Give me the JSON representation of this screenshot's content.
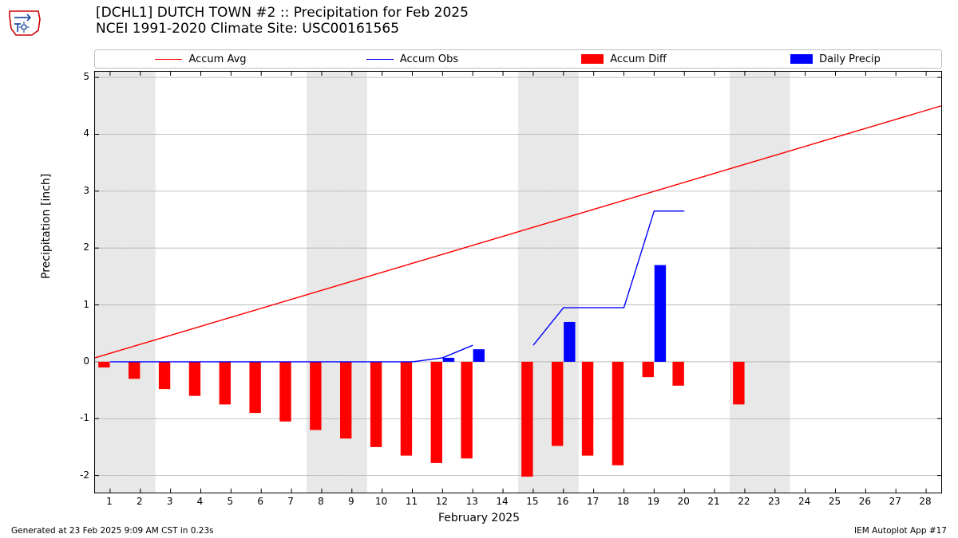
{
  "title_line1": "[DCHL1] DUTCH TOWN #2 :: Precipitation for Feb 2025",
  "title_line2": "NCEI 1991-2020 Climate Site: USC00161565",
  "ylabel": "Precipitation [inch]",
  "xlabel": "February 2025",
  "footer_left": "Generated at 23 Feb 2025 9:09 AM CST in 0.23s",
  "footer_right": "IEM Autoplot App #17",
  "legend": {
    "items": [
      {
        "kind": "line",
        "color": "#ff0000",
        "label": "Accum Avg"
      },
      {
        "kind": "line",
        "color": "#0000ff",
        "label": "Accum Obs"
      },
      {
        "kind": "patch",
        "color": "#ff0000",
        "label": "Accum Diff"
      },
      {
        "kind": "patch",
        "color": "#0000ff",
        "label": "Daily Precip"
      }
    ]
  },
  "chart": {
    "type": "mixed-bar-line",
    "background_color": "#ffffff",
    "grid_color": "#b0b0b0",
    "shade_color": "#e8e8e8",
    "axis_color": "#000000",
    "xlim": [
      0.5,
      28.5
    ],
    "ylim": [
      -2.3,
      5.1
    ],
    "yticks": [
      -2,
      -1,
      0,
      1,
      2,
      3,
      4,
      5
    ],
    "xticks": [
      1,
      2,
      3,
      4,
      5,
      6,
      7,
      8,
      9,
      10,
      11,
      12,
      13,
      14,
      15,
      16,
      17,
      18,
      19,
      20,
      21,
      22,
      23,
      24,
      25,
      26,
      27,
      28
    ],
    "weekend_days": [
      1,
      2,
      8,
      9,
      15,
      16,
      22,
      23
    ],
    "bar_width": 0.38,
    "bar_offset_red": -0.2,
    "bar_offset_blue": 0.2,
    "days": [
      1,
      2,
      3,
      4,
      5,
      6,
      7,
      8,
      9,
      10,
      11,
      12,
      13,
      14,
      15,
      16,
      17,
      18,
      19,
      20,
      21,
      22,
      23,
      24,
      25,
      26,
      27,
      28
    ],
    "accum_diff": {
      "color": "#ff0000",
      "values": [
        -0.1,
        -0.3,
        -0.48,
        -0.6,
        -0.75,
        -0.9,
        -1.05,
        -1.2,
        -1.35,
        -1.5,
        -1.65,
        -1.78,
        -1.7,
        null,
        -2.02,
        -1.48,
        -1.65,
        -1.82,
        -0.27,
        -0.42,
        null,
        -0.75,
        null,
        null,
        null,
        null,
        null,
        null
      ]
    },
    "daily_precip": {
      "color": "#0000ff",
      "values": [
        0,
        0,
        0,
        0,
        0,
        0,
        0,
        0,
        0,
        0,
        0,
        0.07,
        0.22,
        null,
        0,
        0.7,
        0,
        0,
        1.7,
        0,
        null,
        0,
        null,
        null,
        null,
        null,
        null,
        null
      ]
    },
    "accum_avg_line": {
      "color": "#ff0000",
      "width": 1.4,
      "points": [
        [
          0.5,
          0.07
        ],
        [
          28.5,
          4.5
        ]
      ]
    },
    "accum_obs_line": {
      "color": "#0000ff",
      "width": 1.4,
      "segments": [
        [
          [
            1,
            0.0
          ],
          [
            11,
            0.0
          ],
          [
            12,
            0.07
          ],
          [
            13,
            0.29
          ]
        ],
        [
          [
            15,
            0.29
          ],
          [
            16,
            0.95
          ],
          [
            18,
            0.95
          ],
          [
            19,
            2.65
          ],
          [
            20,
            2.65
          ]
        ]
      ]
    },
    "tick_fontsize": 12,
    "label_fontsize": 14,
    "title_fontsize": 17
  }
}
